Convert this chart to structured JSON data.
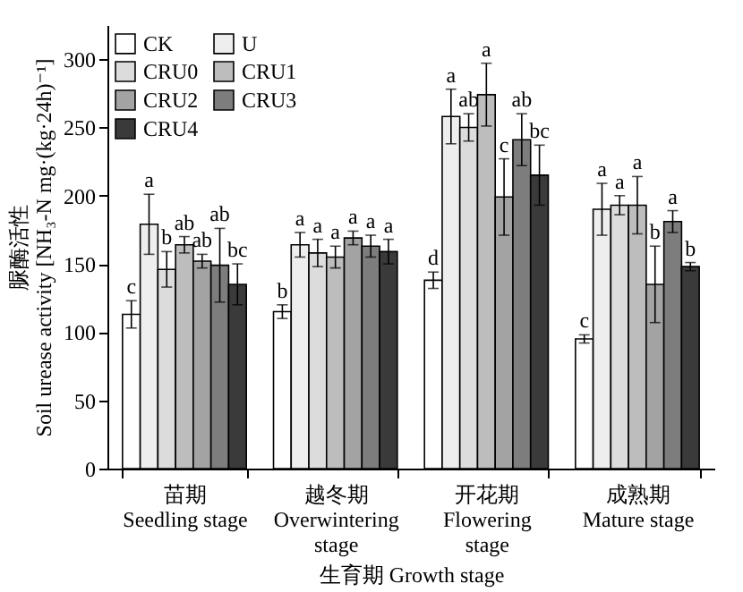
{
  "chart_data": {
    "type": "bar",
    "xlabel": "生育期 Growth stage",
    "ylabel": "脲酶活性\nSoil urease activity [NH₃-N mg·(kg·24h)⁻¹]",
    "categories": [
      "苗期\nSeedling stage",
      "越冬期\nOverwintering\nstage",
      "开花期\nFlowering\nstage",
      "成熟期\nMature stage"
    ],
    "series": [
      {
        "name": "CK",
        "color": "#ffffff",
        "values": [
          113,
          115,
          138,
          95
        ],
        "errors": [
          10,
          5,
          6,
          3
        ],
        "value_labels": [
          "c",
          "b",
          "d",
          "c"
        ]
      },
      {
        "name": "U",
        "color": "#eeeeee",
        "values": [
          179,
          164,
          258,
          190
        ],
        "errors": [
          22,
          9,
          20,
          19
        ],
        "value_labels": [
          "a",
          "a",
          "a",
          "a"
        ]
      },
      {
        "name": "CRU0",
        "color": "#dcdcdc",
        "values": [
          146,
          158,
          250,
          193
        ],
        "errors": [
          13,
          10,
          10,
          7
        ],
        "value_labels": [
          "b",
          "a",
          "ab",
          "a"
        ]
      },
      {
        "name": "CRU1",
        "color": "#bdbdbd",
        "values": [
          164,
          155,
          274,
          193
        ],
        "errors": [
          6,
          8,
          23,
          21
        ],
        "value_labels": [
          "ab",
          "a",
          "a",
          "a"
        ]
      },
      {
        "name": "CRU2",
        "color": "#a3a3a3",
        "values": [
          152,
          169,
          199,
          135
        ],
        "errors": [
          5,
          5,
          28,
          28
        ],
        "value_labels": [
          "ab",
          "a",
          "c",
          "b"
        ]
      },
      {
        "name": "CRU3",
        "color": "#7d7d7d",
        "values": [
          149,
          163,
          241,
          181
        ],
        "errors": [
          27,
          8,
          19,
          8
        ],
        "value_labels": [
          "ab",
          "a",
          "ab",
          "a"
        ]
      },
      {
        "name": "CRU4",
        "color": "#3a3a3a",
        "values": [
          135,
          159,
          215,
          148
        ],
        "errors": [
          15,
          9,
          22,
          3
        ],
        "value_labels": [
          "bc",
          "a",
          "bc",
          "b"
        ]
      }
    ],
    "ylim": [
      0,
      325
    ],
    "yticks": [
      0,
      50,
      100,
      150,
      200,
      250,
      300
    ],
    "legend": "top left",
    "grid": false
  }
}
